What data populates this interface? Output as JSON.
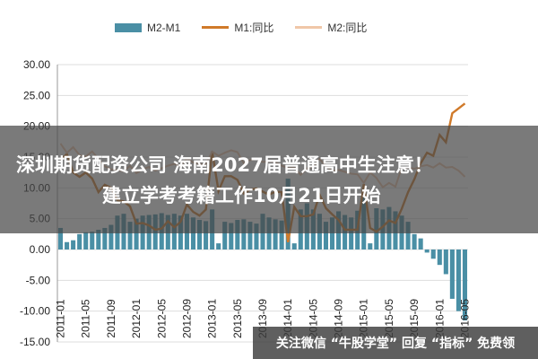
{
  "legend": {
    "bar_label": "M2-M1",
    "line1_label": "M1:同比",
    "line2_label": "M2:同比"
  },
  "banner": {
    "line1": "深圳期货配资公司 海南2027届普通高中生注意！",
    "line2": "建立学考考籍工作10月21日开始"
  },
  "footer_text": "关注微信 “牛股学堂” 回复 “指标” 免费领",
  "colors": {
    "bar": "#4a8fa5",
    "m1": "#d07a2a",
    "m2": "#f0c7a8"
  },
  "chart_data": {
    "type": "bar",
    "ylim": [
      -15,
      30
    ],
    "yticks": [
      "30.00",
      "25.00",
      "20.00",
      "15.00",
      "10.00",
      "5.00",
      "0.00",
      "-5.00",
      "-10.00",
      "-15.00"
    ],
    "xticks": [
      "2011-01",
      "2011-05",
      "2011-09",
      "2012-01",
      "2012-05",
      "2012-09",
      "2013-01",
      "2013-05",
      "2013-09",
      "2014-01",
      "2014-05",
      "2014-09",
      "2015-01",
      "2015-05",
      "2015-09",
      "2016-01",
      "2016-05"
    ],
    "x": [
      "2011-01",
      "2011-02",
      "2011-03",
      "2011-04",
      "2011-05",
      "2011-06",
      "2011-07",
      "2011-08",
      "2011-09",
      "2011-10",
      "2011-11",
      "2011-12",
      "2012-01",
      "2012-02",
      "2012-03",
      "2012-04",
      "2012-05",
      "2012-06",
      "2012-07",
      "2012-08",
      "2012-09",
      "2012-10",
      "2012-11",
      "2012-12",
      "2013-01",
      "2013-02",
      "2013-03",
      "2013-04",
      "2013-05",
      "2013-06",
      "2013-07",
      "2013-08",
      "2013-09",
      "2013-10",
      "2013-11",
      "2013-12",
      "2014-01",
      "2014-02",
      "2014-03",
      "2014-04",
      "2014-05",
      "2014-06",
      "2014-07",
      "2014-08",
      "2014-09",
      "2014-10",
      "2014-11",
      "2014-12",
      "2015-01",
      "2015-02",
      "2015-03",
      "2015-04",
      "2015-05",
      "2015-06",
      "2015-07",
      "2015-08",
      "2015-09",
      "2015-10",
      "2015-11",
      "2015-12",
      "2016-01",
      "2016-02",
      "2016-03",
      "2016-04",
      "2016-05"
    ],
    "series": [
      {
        "name": "M2-M1",
        "type": "bar",
        "values": [
          3.5,
          1.2,
          1.5,
          2.5,
          2.8,
          2.9,
          3.2,
          3.5,
          4.0,
          5.5,
          5.8,
          4.5,
          5.0,
          5.5,
          5.6,
          5.7,
          5.9,
          5.6,
          5.8,
          5.5,
          5.8,
          5.2,
          4.8,
          4.6,
          6.5,
          1.0,
          4.5,
          4.3,
          4.8,
          4.9,
          4.5,
          4.2,
          5.8,
          5.2,
          4.9,
          4.7,
          11.5,
          1.0,
          6.5,
          7.5,
          6.5,
          5.8,
          4.5,
          5.2,
          6.2,
          5.6,
          5.2,
          6.3,
          8.5,
          1.0,
          6.7,
          6.5,
          6.9,
          6.2,
          5.5,
          4.5,
          2.5,
          1.8,
          -0.5,
          -1.5,
          -2.5,
          -4.0,
          -8.0,
          -10.0,
          -11.5
        ]
      },
      {
        "name": "M1:同比",
        "type": "line",
        "values": [
          14.5,
          15.5,
          12.5,
          11.8,
          12.5,
          11.5,
          9.3,
          10.5,
          10.0,
          8.0,
          7.8,
          7.0,
          4.2,
          4.3,
          3.9,
          3.2,
          3.4,
          4.6,
          3.6,
          4.5,
          7.3,
          6.1,
          5.5,
          6.5,
          15.9,
          9.5,
          11.9,
          11.9,
          11.3,
          9.1,
          9.7,
          9.9,
          9.4,
          8.9,
          9.4,
          9.3,
          1.2,
          6.9,
          5.4,
          5.4,
          5.7,
          8.9,
          6.7,
          5.7,
          4.8,
          3.2,
          3.2,
          3.2,
          10.6,
          3.5,
          2.9,
          3.7,
          4.7,
          4.3,
          6.6,
          9.3,
          11.4,
          14.0,
          15.7,
          15.2,
          18.6,
          17.4,
          22.1,
          22.9,
          23.7
        ]
      },
      {
        "name": "M2:同比",
        "type": "line",
        "values": [
          17.2,
          15.7,
          16.6,
          15.3,
          15.1,
          15.9,
          14.7,
          13.5,
          13.0,
          12.9,
          12.7,
          13.6,
          12.4,
          13.0,
          13.4,
          12.8,
          13.2,
          13.6,
          13.9,
          13.5,
          14.8,
          14.1,
          13.9,
          13.8,
          15.9,
          15.2,
          15.7,
          16.1,
          15.8,
          14.0,
          14.5,
          14.7,
          14.2,
          14.3,
          14.2,
          13.6,
          13.2,
          13.3,
          12.1,
          13.2,
          13.4,
          14.7,
          13.5,
          12.8,
          12.9,
          12.6,
          12.3,
          12.2,
          10.8,
          12.5,
          11.6,
          10.1,
          10.8,
          10.2,
          13.3,
          13.3,
          13.1,
          13.5,
          13.7,
          13.3,
          14.0,
          13.3,
          13.4,
          12.8,
          11.8
        ]
      }
    ]
  }
}
